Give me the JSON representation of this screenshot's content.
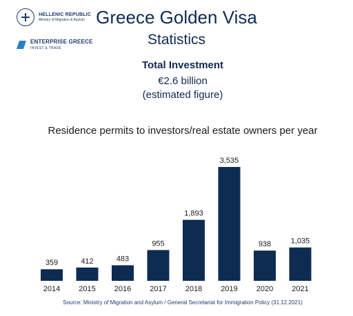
{
  "logos": {
    "republic_name": "HELLENIC REPUBLIC",
    "ministry": "Ministry of Migration & Asylum",
    "agency_name": "ENTERPRISE GREECE",
    "agency_tagline": "INVEST & TRADE"
  },
  "header": {
    "title": "Greece Golden Visa",
    "subtitle": "Statistics"
  },
  "summary": {
    "label": "Total Investment",
    "value": "€2.6 billion",
    "note": "(estimated figure)"
  },
  "colors": {
    "bar": "#0e2b52",
    "text": "#1a1a1a",
    "accent_blue": "#2a7fc9"
  },
  "chart_data": {
    "type": "bar",
    "title": "Residence permits to investors/real estate owners per year",
    "categories": [
      "2014",
      "2015",
      "2016",
      "2017",
      "2018",
      "2019",
      "2020",
      "2021"
    ],
    "values": [
      359,
      412,
      483,
      955,
      1893,
      3535,
      938,
      1035
    ],
    "value_labels": [
      "359",
      "412",
      "483",
      "955",
      "1,893",
      "3,535",
      "938",
      "1,035"
    ],
    "ylim": [
      0,
      3535
    ],
    "grid": false,
    "legend": "none"
  },
  "footer": {
    "source": "Source: Ministry of Migration and Asylum / General Secretariat for Immigration Policy (31.12.2021)"
  }
}
